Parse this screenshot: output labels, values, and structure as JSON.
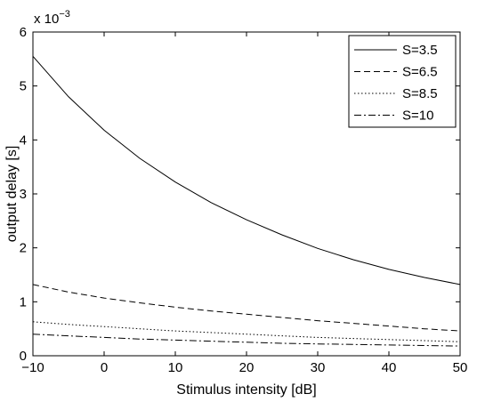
{
  "chart_data": {
    "type": "line",
    "xlabel": "Stimulus intensity [dB]",
    "ylabel": "output delay [s]",
    "y_multiplier": {
      "base": "x 10",
      "exponent": "−3"
    },
    "xlim": [
      -10,
      50
    ],
    "ylim": [
      0,
      6
    ],
    "x_ticks": [
      -10,
      0,
      10,
      20,
      30,
      40,
      50
    ],
    "x_tick_labels": [
      "−10",
      "0",
      "10",
      "20",
      "30",
      "40",
      "50"
    ],
    "y_ticks": [
      0,
      1,
      2,
      3,
      4,
      5,
      6
    ],
    "y_tick_labels": [
      "0",
      "1",
      "2",
      "3",
      "4",
      "5",
      "6"
    ],
    "grid": false,
    "legend_position": "top-right",
    "x": [
      -10,
      -5,
      0,
      5,
      10,
      15,
      20,
      25,
      30,
      35,
      40,
      45,
      50
    ],
    "series": [
      {
        "name": "S=3.5",
        "style": "solid",
        "color": "#000000",
        "values": [
          5.55,
          4.8,
          4.18,
          3.66,
          3.22,
          2.84,
          2.52,
          2.24,
          1.99,
          1.78,
          1.6,
          1.45,
          1.32
        ]
      },
      {
        "name": "S=6.5",
        "style": "dashed",
        "color": "#000000",
        "values": [
          1.32,
          1.18,
          1.07,
          0.98,
          0.9,
          0.83,
          0.77,
          0.71,
          0.65,
          0.6,
          0.55,
          0.5,
          0.46
        ]
      },
      {
        "name": "S=8.5",
        "style": "dotted",
        "color": "#000000",
        "values": [
          0.63,
          0.58,
          0.54,
          0.5,
          0.46,
          0.43,
          0.4,
          0.37,
          0.34,
          0.32,
          0.3,
          0.28,
          0.26
        ]
      },
      {
        "name": "S=10",
        "style": "dashdot",
        "color": "#000000",
        "values": [
          0.4,
          0.37,
          0.34,
          0.31,
          0.29,
          0.27,
          0.25,
          0.23,
          0.22,
          0.21,
          0.2,
          0.19,
          0.18
        ]
      }
    ]
  }
}
